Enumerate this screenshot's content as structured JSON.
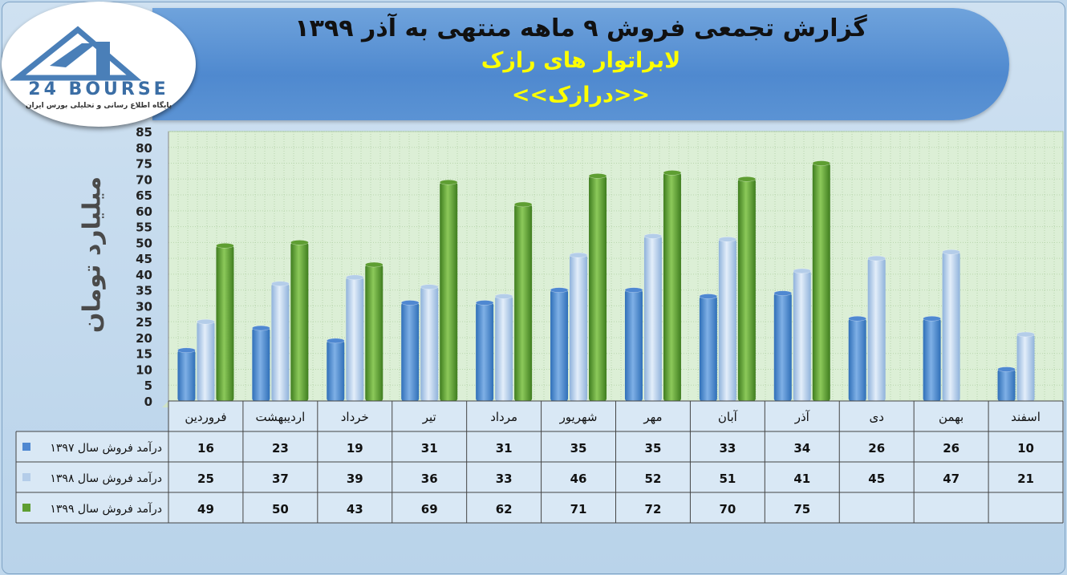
{
  "header": {
    "title": "گزارش تجمعی فروش ۹ ماهه منتهی به آذر ۱۳۹۹",
    "company": "لابراتوار های رازک",
    "symbol": "<<درازک>>"
  },
  "logo": {
    "name": "24 BOURSE",
    "caption": "پایگاه اطلاع رسانی و تحلیلی بورس ایران"
  },
  "colors": {
    "series_1397": "#4f88d1",
    "series_1398": "#b4cde9",
    "series_1399": "#5e9e32",
    "banner": "#4f89cf",
    "title_accent": "#ffff00"
  },
  "chart_data": {
    "type": "bar",
    "ylabel": "میلیارد تومان",
    "ylim": [
      0,
      85
    ],
    "yticks": [
      0,
      5,
      10,
      15,
      20,
      25,
      30,
      35,
      40,
      45,
      50,
      55,
      60,
      65,
      70,
      75,
      80,
      85
    ],
    "grid": true,
    "legend": "data-table-left",
    "categories": [
      "فروردین",
      "اردیبهشت",
      "خرداد",
      "تیر",
      "مرداد",
      "شهریور",
      "مهر",
      "آبان",
      "آذر",
      "دی",
      "بهمن",
      "اسفند"
    ],
    "series": [
      {
        "name": "درآمد فروش سال ۱۳۹۷",
        "values": [
          16,
          23,
          19,
          31,
          31,
          35,
          35,
          33,
          34,
          26,
          26,
          10
        ]
      },
      {
        "name": "درآمد فروش سال ۱۳۹۸",
        "values": [
          25,
          37,
          39,
          36,
          33,
          46,
          52,
          51,
          41,
          45,
          47,
          21
        ]
      },
      {
        "name": "درآمد فروش سال ۱۳۹۹",
        "values": [
          49,
          50,
          43,
          69,
          62,
          71,
          72,
          70,
          75,
          null,
          null,
          null
        ]
      }
    ]
  }
}
